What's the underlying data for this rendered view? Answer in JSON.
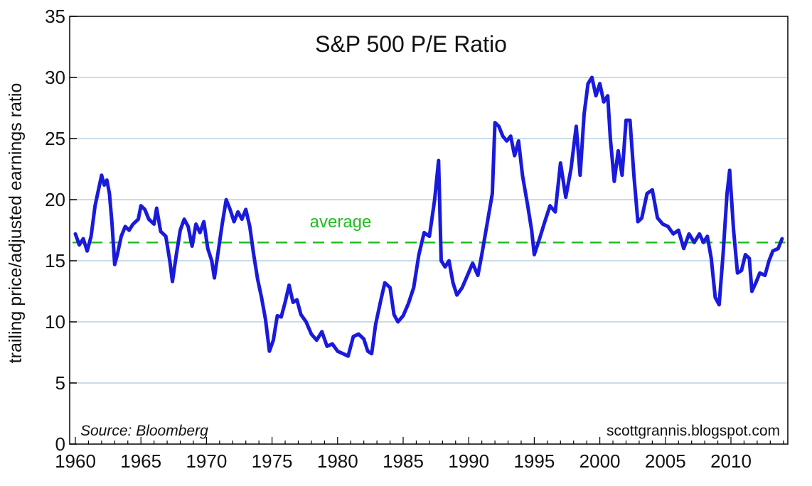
{
  "chart_data": {
    "type": "line",
    "title": "S&P 500 P/E Ratio",
    "xlabel": "",
    "ylabel": "trailing price/adjusted earnings ratio",
    "xlim": [
      1960,
      2014
    ],
    "ylim": [
      0,
      35
    ],
    "x_ticks": [
      1960,
      1965,
      1970,
      1975,
      1980,
      1985,
      1990,
      1995,
      2000,
      2005,
      2010
    ],
    "y_ticks": [
      0,
      5,
      10,
      15,
      20,
      25,
      30,
      35
    ],
    "grid": "horizontal",
    "source_note": "Source: Bloomberg",
    "credit_note": "scottgrannis.blogspot.com",
    "colors": {
      "series": "#1a1adc",
      "average": "#22bb22",
      "grid": "#a9c7dc",
      "axis": "#000000"
    },
    "average": {
      "label": "average",
      "value": 16.5
    },
    "series": [
      {
        "name": "S&P 500 trailing P/E",
        "points": [
          [
            1960.0,
            17.2
          ],
          [
            1960.3,
            16.3
          ],
          [
            1960.6,
            16.8
          ],
          [
            1960.9,
            15.8
          ],
          [
            1961.2,
            17.0
          ],
          [
            1961.5,
            19.5
          ],
          [
            1961.8,
            21.0
          ],
          [
            1962.0,
            22.0
          ],
          [
            1962.2,
            21.2
          ],
          [
            1962.4,
            21.6
          ],
          [
            1962.6,
            20.5
          ],
          [
            1962.8,
            18.0
          ],
          [
            1963.0,
            14.7
          ],
          [
            1963.2,
            15.5
          ],
          [
            1963.5,
            17.0
          ],
          [
            1963.8,
            17.8
          ],
          [
            1964.1,
            17.5
          ],
          [
            1964.4,
            18.0
          ],
          [
            1964.8,
            18.4
          ],
          [
            1965.0,
            19.5
          ],
          [
            1965.3,
            19.2
          ],
          [
            1965.6,
            18.4
          ],
          [
            1966.0,
            18.0
          ],
          [
            1966.2,
            19.3
          ],
          [
            1966.5,
            17.4
          ],
          [
            1966.9,
            17.0
          ],
          [
            1967.2,
            15.0
          ],
          [
            1967.4,
            13.3
          ],
          [
            1967.7,
            15.5
          ],
          [
            1968.0,
            17.5
          ],
          [
            1968.3,
            18.4
          ],
          [
            1968.6,
            17.8
          ],
          [
            1968.9,
            16.2
          ],
          [
            1969.2,
            18.0
          ],
          [
            1969.5,
            17.3
          ],
          [
            1969.8,
            18.2
          ],
          [
            1970.1,
            16.0
          ],
          [
            1970.4,
            15.0
          ],
          [
            1970.6,
            13.6
          ],
          [
            1970.9,
            15.8
          ],
          [
            1971.2,
            18.0
          ],
          [
            1971.5,
            20.0
          ],
          [
            1971.8,
            19.2
          ],
          [
            1972.1,
            18.2
          ],
          [
            1972.4,
            19.0
          ],
          [
            1972.7,
            18.4
          ],
          [
            1973.0,
            19.2
          ],
          [
            1973.3,
            17.8
          ],
          [
            1973.6,
            15.5
          ],
          [
            1973.9,
            13.5
          ],
          [
            1974.2,
            12.0
          ],
          [
            1974.5,
            10.2
          ],
          [
            1974.8,
            7.6
          ],
          [
            1975.1,
            8.5
          ],
          [
            1975.4,
            10.5
          ],
          [
            1975.7,
            10.4
          ],
          [
            1976.0,
            11.6
          ],
          [
            1976.3,
            13.0
          ],
          [
            1976.6,
            11.6
          ],
          [
            1976.9,
            11.8
          ],
          [
            1977.2,
            10.6
          ],
          [
            1977.6,
            10.0
          ],
          [
            1978.0,
            9.0
          ],
          [
            1978.4,
            8.5
          ],
          [
            1978.8,
            9.2
          ],
          [
            1979.2,
            8.0
          ],
          [
            1979.6,
            8.2
          ],
          [
            1980.0,
            7.6
          ],
          [
            1980.4,
            7.4
          ],
          [
            1980.8,
            7.2
          ],
          [
            1981.2,
            8.8
          ],
          [
            1981.6,
            9.0
          ],
          [
            1982.0,
            8.6
          ],
          [
            1982.3,
            7.6
          ],
          [
            1982.6,
            7.4
          ],
          [
            1982.9,
            9.8
          ],
          [
            1983.3,
            11.8
          ],
          [
            1983.6,
            13.2
          ],
          [
            1984.0,
            12.8
          ],
          [
            1984.3,
            10.6
          ],
          [
            1984.6,
            10.0
          ],
          [
            1985.0,
            10.5
          ],
          [
            1985.4,
            11.5
          ],
          [
            1985.8,
            12.8
          ],
          [
            1986.2,
            15.5
          ],
          [
            1986.6,
            17.3
          ],
          [
            1987.0,
            17.0
          ],
          [
            1987.4,
            20.0
          ],
          [
            1987.7,
            23.2
          ],
          [
            1987.9,
            15.0
          ],
          [
            1988.2,
            14.5
          ],
          [
            1988.5,
            15.0
          ],
          [
            1988.8,
            13.2
          ],
          [
            1989.1,
            12.2
          ],
          [
            1989.5,
            12.8
          ],
          [
            1989.9,
            13.8
          ],
          [
            1990.3,
            14.8
          ],
          [
            1990.7,
            13.8
          ],
          [
            1991.0,
            15.5
          ],
          [
            1991.4,
            18.0
          ],
          [
            1991.8,
            20.5
          ],
          [
            1992.0,
            26.3
          ],
          [
            1992.3,
            26.0
          ],
          [
            1992.6,
            25.2
          ],
          [
            1992.9,
            24.8
          ],
          [
            1993.2,
            25.2
          ],
          [
            1993.5,
            23.6
          ],
          [
            1993.8,
            24.8
          ],
          [
            1994.1,
            22.0
          ],
          [
            1994.5,
            19.5
          ],
          [
            1994.8,
            17.5
          ],
          [
            1995.0,
            15.5
          ],
          [
            1995.4,
            16.8
          ],
          [
            1995.8,
            18.2
          ],
          [
            1996.2,
            19.5
          ],
          [
            1996.6,
            19.0
          ],
          [
            1997.0,
            23.0
          ],
          [
            1997.4,
            20.2
          ],
          [
            1997.8,
            22.5
          ],
          [
            1998.2,
            26.0
          ],
          [
            1998.5,
            22.0
          ],
          [
            1998.8,
            27.0
          ],
          [
            1999.1,
            29.5
          ],
          [
            1999.4,
            30.0
          ],
          [
            1999.7,
            28.5
          ],
          [
            2000.0,
            29.5
          ],
          [
            2000.3,
            28.0
          ],
          [
            2000.6,
            28.5
          ],
          [
            2000.8,
            25.0
          ],
          [
            2001.1,
            21.5
          ],
          [
            2001.4,
            24.0
          ],
          [
            2001.7,
            22.0
          ],
          [
            2002.0,
            26.5
          ],
          [
            2002.3,
            26.5
          ],
          [
            2002.6,
            22.0
          ],
          [
            2002.9,
            18.2
          ],
          [
            2003.2,
            18.5
          ],
          [
            2003.6,
            20.5
          ],
          [
            2004.0,
            20.8
          ],
          [
            2004.4,
            18.5
          ],
          [
            2004.8,
            18.0
          ],
          [
            2005.2,
            17.8
          ],
          [
            2005.6,
            17.2
          ],
          [
            2006.0,
            17.5
          ],
          [
            2006.4,
            16.0
          ],
          [
            2006.8,
            17.2
          ],
          [
            2007.2,
            16.5
          ],
          [
            2007.6,
            17.2
          ],
          [
            2007.9,
            16.5
          ],
          [
            2008.2,
            17.0
          ],
          [
            2008.5,
            15.2
          ],
          [
            2008.8,
            12.0
          ],
          [
            2009.1,
            11.4
          ],
          [
            2009.4,
            15.5
          ],
          [
            2009.7,
            20.5
          ],
          [
            2009.9,
            22.4
          ],
          [
            2010.2,
            17.5
          ],
          [
            2010.5,
            14.0
          ],
          [
            2010.8,
            14.2
          ],
          [
            2011.1,
            15.5
          ],
          [
            2011.4,
            15.2
          ],
          [
            2011.6,
            12.5
          ],
          [
            2011.9,
            13.2
          ],
          [
            2012.2,
            14.0
          ],
          [
            2012.6,
            13.8
          ],
          [
            2012.9,
            15.0
          ],
          [
            2013.2,
            15.8
          ],
          [
            2013.6,
            16.0
          ],
          [
            2013.9,
            16.8
          ]
        ]
      }
    ]
  }
}
